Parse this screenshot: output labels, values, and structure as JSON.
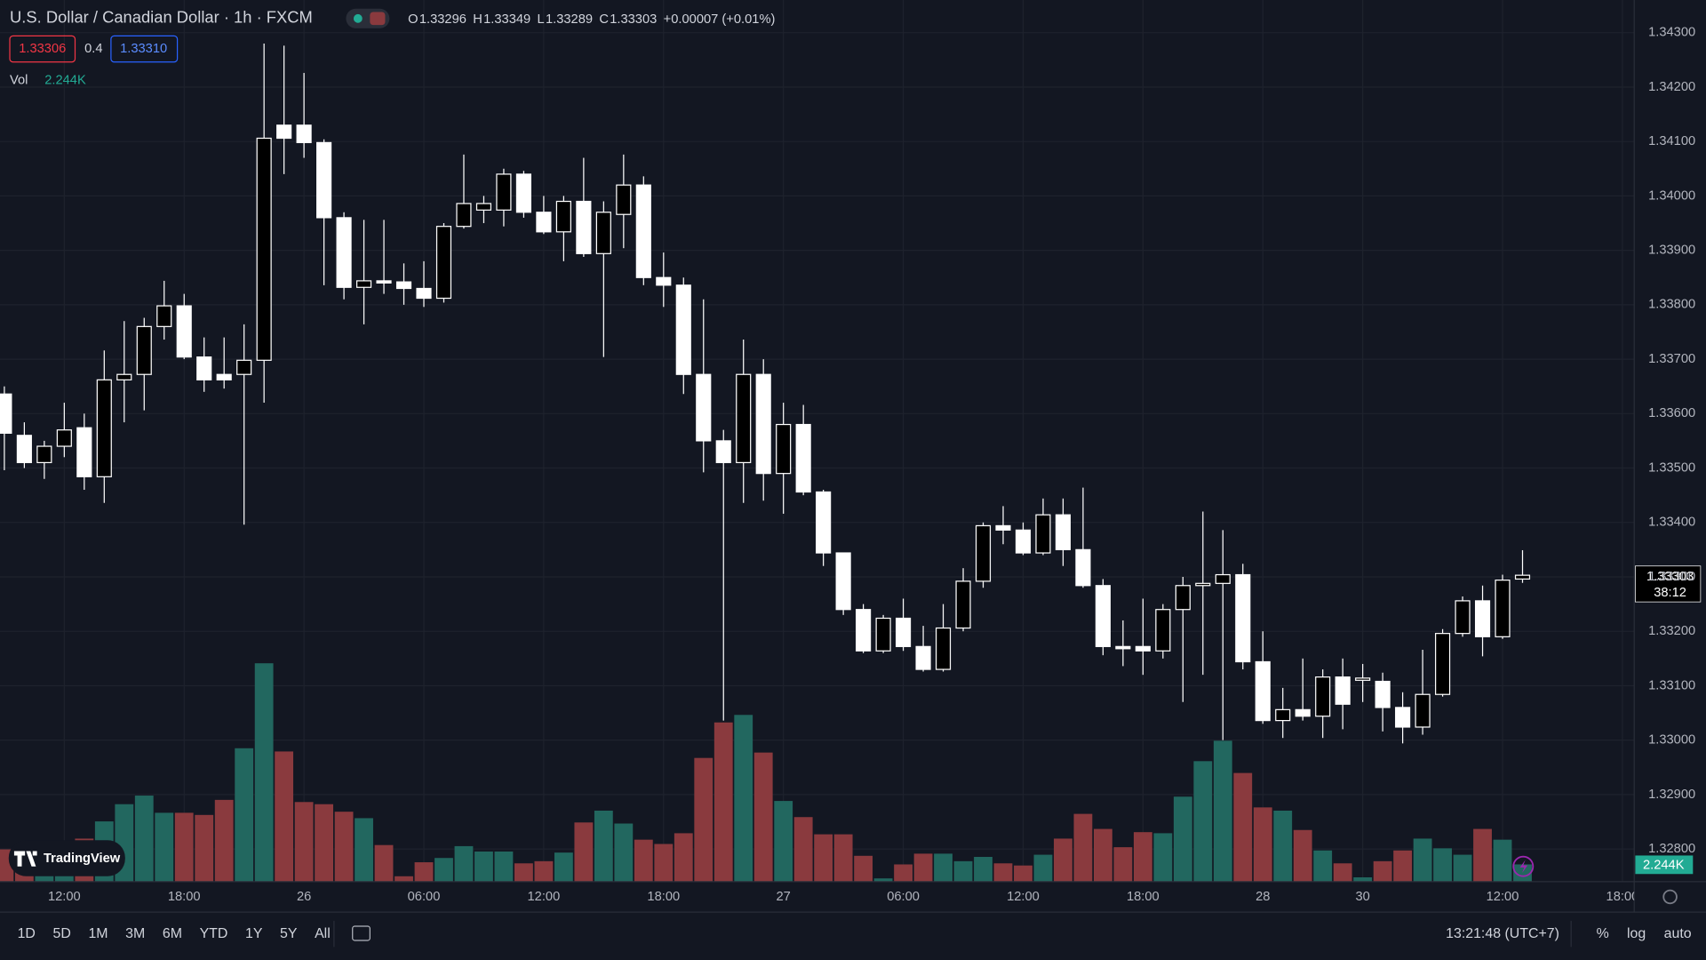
{
  "chart_data": {
    "type": "candlestick",
    "title": "U.S. Dollar / Canadian Dollar · 1h · FXCM",
    "legend": {
      "open_label": "O",
      "high_label": "H",
      "low_label": "L",
      "close_label": "C",
      "change": "+0.00007 (+0.01%)"
    },
    "quote": {
      "bid": "1.33306",
      "spread": "0.4",
      "ask": "1.33310"
    },
    "volume_legend": {
      "name": "Vol",
      "value_label": "2.244K"
    },
    "countdown": "38:12",
    "up_body_color": "#000000",
    "down_body_color": "#ffffff",
    "wick_color": "#ffffff",
    "volume_up_color": "#22675f",
    "volume_down_color": "#8a3a3e",
    "open": [
      1.33636,
      1.3356,
      1.3351,
      1.3354,
      1.33574,
      1.33484,
      1.33662,
      1.33672,
      1.3376,
      1.33798,
      1.33704,
      1.33672,
      1.33672,
      1.33698,
      1.3413,
      1.3413,
      1.34098,
      1.3396,
      1.33832,
      1.33844,
      1.33842,
      1.3383,
      1.33812,
      1.33944,
      1.33974,
      1.33974,
      1.3404,
      1.3397,
      1.33934,
      1.3399,
      1.33894,
      1.33966,
      1.3402,
      1.3385,
      1.33836,
      1.33672,
      1.3355,
      1.3351,
      1.33672,
      1.3349,
      1.3358,
      1.33456,
      1.33344,
      1.3324,
      1.33164,
      1.33224,
      1.33172,
      1.3313,
      1.33206,
      1.33292,
      1.33394,
      1.33386,
      1.33344,
      1.33414,
      1.3335,
      1.33284,
      1.33172,
      1.33172,
      1.33164,
      1.3324,
      1.33284,
      1.33288,
      1.33304,
      1.33144,
      1.33036,
      1.33056,
      1.33044,
      1.33116,
      1.3311,
      1.33108,
      1.3306,
      1.33024,
      1.33084,
      1.33196,
      1.33256,
      1.3319,
      1.33296
    ],
    "high": [
      1.3365,
      1.33584,
      1.3355,
      1.3362,
      1.336,
      1.33716,
      1.3377,
      1.33776,
      1.33844,
      1.3382,
      1.3374,
      1.3374,
      1.33764,
      1.3428,
      1.34276,
      1.34226,
      1.34104,
      1.3397,
      1.33956,
      1.33956,
      1.33876,
      1.3388,
      1.3395,
      1.34076,
      1.34,
      1.3405,
      1.34046,
      1.34,
      1.34,
      1.3407,
      1.3399,
      1.34076,
      1.34036,
      1.33896,
      1.3385,
      1.3381,
      1.3357,
      1.33736,
      1.337,
      1.3362,
      1.33616,
      1.3346,
      1.3334,
      1.3325,
      1.3323,
      1.3326,
      1.3321,
      1.3325,
      1.33316,
      1.334,
      1.3343,
      1.334,
      1.33444,
      1.33444,
      1.33464,
      1.33296,
      1.3322,
      1.3326,
      1.3325,
      1.333,
      1.3342,
      1.33386,
      1.33324,
      1.332,
      1.33096,
      1.3315,
      1.3313,
      1.3315,
      1.3314,
      1.33124,
      1.33088,
      1.33166,
      1.33204,
      1.33264,
      1.33284,
      1.33304,
      1.33349
    ],
    "low": [
      1.33496,
      1.335,
      1.3348,
      1.3352,
      1.3346,
      1.33436,
      1.33584,
      1.33606,
      1.33736,
      1.337,
      1.3364,
      1.33646,
      1.33396,
      1.3362,
      1.3404,
      1.3407,
      1.33836,
      1.3381,
      1.33764,
      1.3382,
      1.338,
      1.33796,
      1.33804,
      1.3394,
      1.3395,
      1.33944,
      1.3396,
      1.3393,
      1.3388,
      1.33888,
      1.33704,
      1.33904,
      1.33836,
      1.33796,
      1.33636,
      1.33492,
      1.33036,
      1.33436,
      1.3344,
      1.33416,
      1.3345,
      1.3332,
      1.3323,
      1.3316,
      1.3316,
      1.33164,
      1.33126,
      1.33126,
      1.332,
      1.3328,
      1.3336,
      1.3334,
      1.3334,
      1.3332,
      1.3328,
      1.33156,
      1.33136,
      1.3312,
      1.3315,
      1.3307,
      1.3312,
      1.33,
      1.3313,
      1.3303,
      1.33004,
      1.33036,
      1.33004,
      1.3302,
      1.3307,
      1.33016,
      1.32994,
      1.3301,
      1.3308,
      1.3319,
      1.33154,
      1.33186,
      1.33289
    ],
    "close": [
      1.33564,
      1.3351,
      1.3354,
      1.3357,
      1.33484,
      1.33662,
      1.33672,
      1.3376,
      1.33798,
      1.33704,
      1.33662,
      1.33662,
      1.33698,
      1.34106,
      1.34106,
      1.34098,
      1.3396,
      1.33832,
      1.33844,
      1.3384,
      1.3383,
      1.33812,
      1.33944,
      1.33986,
      1.33986,
      1.3404,
      1.3397,
      1.33934,
      1.3399,
      1.33894,
      1.3397,
      1.3402,
      1.3385,
      1.33836,
      1.33672,
      1.3355,
      1.3351,
      1.33672,
      1.3349,
      1.3358,
      1.33456,
      1.33344,
      1.3324,
      1.33164,
      1.33224,
      1.33172,
      1.3313,
      1.33206,
      1.33292,
      1.33394,
      1.33386,
      1.33344,
      1.33414,
      1.3335,
      1.33284,
      1.33172,
      1.33168,
      1.33164,
      1.3324,
      1.33284,
      1.33288,
      1.33304,
      1.33144,
      1.33036,
      1.33056,
      1.33044,
      1.33116,
      1.33066,
      1.33114,
      1.3306,
      1.33024,
      1.33084,
      1.33196,
      1.33256,
      1.3319,
      1.33294,
      1.33303
    ],
    "volume": [
      4200,
      3500,
      3080,
      4200,
      5600,
      7840,
      10080,
      11200,
      8960,
      8960,
      8680,
      10640,
      17360,
      28420,
      16940,
      10360,
      10080,
      9100,
      8260,
      4760,
      700,
      2520,
      3080,
      4620,
      3920,
      3920,
      2380,
      2660,
      3780,
      7700,
      9240,
      7560,
      5460,
      4900,
      6300,
      16100,
      20720,
      21700,
      16800,
      10500,
      8400,
      6160,
      6160,
      3360,
      420,
      2240,
      3640,
      3640,
      2660,
      3220,
      2380,
      2100,
      3500,
      5600,
      8820,
      6860,
      4480,
      6440,
      6300,
      11060,
      15680,
      18340,
      14140,
      9660,
      9240,
      6720,
      4060,
      2380,
      560,
      2660,
      4060,
      5600,
      4340,
      3500,
      6860,
      5460,
      2244
    ],
    "xlim": [
      -0.2179,
      81.59
    ],
    "xticks": [
      {
        "value": 3,
        "label": "12:00"
      },
      {
        "value": 9,
        "label": "18:00"
      },
      {
        "value": 15,
        "label": "26"
      },
      {
        "value": 21,
        "label": "06:00"
      },
      {
        "value": 27,
        "label": "12:00"
      },
      {
        "value": 33,
        "label": "18:00"
      },
      {
        "value": 39,
        "label": "27"
      },
      {
        "value": 45,
        "label": "06:00"
      },
      {
        "value": 51,
        "label": "12:00"
      },
      {
        "value": 57,
        "label": "18:00"
      },
      {
        "value": 63,
        "label": "28"
      },
      {
        "value": 68,
        "label": "30"
      },
      {
        "value": 75,
        "label": "12:00"
      },
      {
        "value": 81,
        "label": "18:00"
      }
    ],
    "ylim": [
      1.3274,
      1.3436
    ],
    "yticks": [
      {
        "value": 1.328,
        "label": "1.32800"
      },
      {
        "value": 1.329,
        "label": "1.32900"
      },
      {
        "value": 1.33,
        "label": "1.33000"
      },
      {
        "value": 1.331,
        "label": "1.33100"
      },
      {
        "value": 1.332,
        "label": "1.33200"
      },
      {
        "value": 1.333,
        "label": "1.33300"
      },
      {
        "value": 1.334,
        "label": "1.33400"
      },
      {
        "value": 1.335,
        "label": "1.33500"
      },
      {
        "value": 1.336,
        "label": "1.33600"
      },
      {
        "value": 1.337,
        "label": "1.33700"
      },
      {
        "value": 1.338,
        "label": "1.33800"
      },
      {
        "value": 1.339,
        "label": "1.33900"
      },
      {
        "value": 1.34,
        "label": "1.34000"
      },
      {
        "value": 1.341,
        "label": "1.34100"
      },
      {
        "value": 1.342,
        "label": "1.34200"
      },
      {
        "value": 1.343,
        "label": "1.34300"
      }
    ],
    "volume_ylim": [
      0,
      34000
    ],
    "grid": true
  },
  "toolbar": {
    "ranges": [
      "1D",
      "5D",
      "1M",
      "3M",
      "6M",
      "YTD",
      "1Y",
      "5Y",
      "All"
    ],
    "clock": "13:21:48 (UTC+7)",
    "percent": "%",
    "log": "log",
    "auto": "auto"
  },
  "brand": "TradingView"
}
